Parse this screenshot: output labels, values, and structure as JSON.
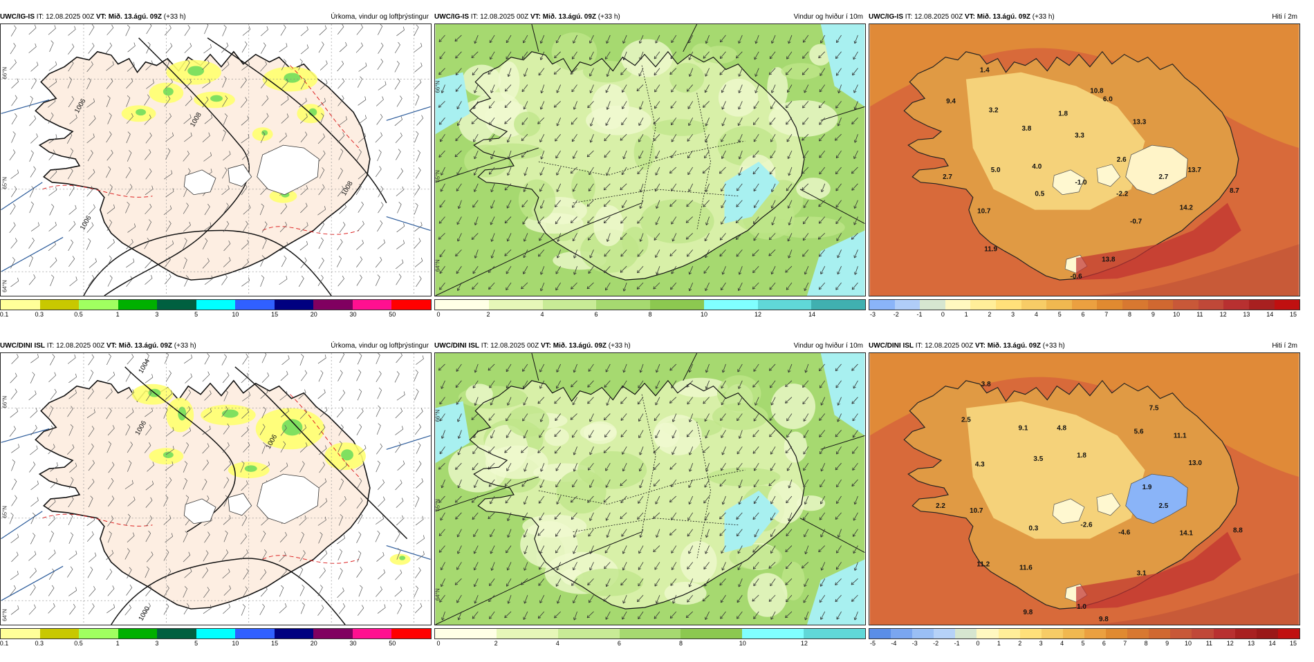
{
  "panels": [
    {
      "model": "UWC/IG-IS",
      "it_label": "IT:",
      "it_value": "12.08.2025 00Z",
      "vt_label": "VT:",
      "vt_value": "Mið. 13.ágú. 09Z",
      "lead": "(+33 h)",
      "title": "Úrkoma, vindur og loftþrýstingur",
      "kind": "precip",
      "legend_colors": [
        "#ffff99",
        "#c8c800",
        "#a0ff60",
        "#00b000",
        "#006040",
        "#00ffff",
        "#3060ff",
        "#000080",
        "#800060",
        "#ff1090",
        "#ff0000"
      ],
      "legend_ticks": [
        "0.1",
        "0.3",
        "0.5",
        "1",
        "3",
        "5",
        "10",
        "15",
        "20",
        "30",
        "50"
      ],
      "isobar_labels": [
        "1006",
        "1006",
        "1008",
        "1008"
      ],
      "lat_labels": [
        "66°N",
        "65°N",
        "64°N"
      ],
      "values": []
    },
    {
      "model": "UWC/IG-IS",
      "it_label": "IT:",
      "it_value": "12.08.2025 00Z",
      "vt_label": "VT:",
      "vt_value": "Mið. 13.ágú. 09Z",
      "lead": "(+33 h)",
      "title": "Vindur og hviður í 10m",
      "kind": "wind",
      "legend_colors": [
        "#ffffe6",
        "#e6f7b8",
        "#c8eb96",
        "#a6d970",
        "#8cc850",
        "#80ffff",
        "#60d8d8",
        "#40b0b0"
      ],
      "legend_ticks": [
        "0",
        "2",
        "4",
        "6",
        "8",
        "10",
        "12",
        "14"
      ],
      "isobar_labels": [],
      "lat_labels": [
        "66°N",
        "65°N",
        "64°N"
      ],
      "values": []
    },
    {
      "model": "UWC/IG-IS",
      "it_label": "IT:",
      "it_value": "12.08.2025 00Z",
      "vt_label": "VT:",
      "vt_value": "Mið. 13.ágú. 09Z",
      "lead": "(+33 h)",
      "title": "Hiti í 2m",
      "kind": "temp",
      "legend_colors": [
        "#8ab4f8",
        "#b0cdf8",
        "#d6e6d0",
        "#fff8c0",
        "#ffee99",
        "#ffe07a",
        "#f7cc66",
        "#f0b850",
        "#eba040",
        "#e08a30",
        "#d87830",
        "#d06830",
        "#c85838",
        "#c04838",
        "#b83030",
        "#a82020",
        "#c01010"
      ],
      "legend_ticks": [
        "-3",
        "-2",
        "-1",
        "0",
        "1",
        "2",
        "3",
        "4",
        "5",
        "6",
        "7",
        "8",
        "9",
        "10",
        "11",
        "12",
        "13",
        "14",
        "15"
      ],
      "isobar_labels": [],
      "lat_labels": [],
      "values": [
        {
          "t": "1.4"
        },
        {
          "t": "9.4"
        },
        {
          "t": "3.2"
        },
        {
          "t": "3.8"
        },
        {
          "t": "1.8"
        },
        {
          "t": "10.8"
        },
        {
          "t": "6.0"
        },
        {
          "t": "13.3"
        },
        {
          "t": "3.3"
        },
        {
          "t": "2.6"
        },
        {
          "t": "4.0"
        },
        {
          "t": "5.0"
        },
        {
          "t": "2.7"
        },
        {
          "t": "0.5"
        },
        {
          "t": "-1.0"
        },
        {
          "t": "-2.2"
        },
        {
          "t": "2.7"
        },
        {
          "t": "13.7"
        },
        {
          "t": "8.7"
        },
        {
          "t": "14.2"
        },
        {
          "t": "10.7"
        },
        {
          "t": "-0.7"
        },
        {
          "t": "11.9"
        },
        {
          "t": "13.8"
        },
        {
          "t": "-0.6"
        }
      ]
    },
    {
      "model": "UWC/DINI ISL",
      "it_label": "IT:",
      "it_value": "12.08.2025 00Z",
      "vt_label": "VT:",
      "vt_value": "Mið. 13.ágú. 09Z",
      "lead": "(+33 h)",
      "title": "Úrkoma, vindur og loftþrýstingur",
      "kind": "precip",
      "legend_colors": [
        "#ffff99",
        "#c8c800",
        "#a0ff60",
        "#00b000",
        "#006040",
        "#00ffff",
        "#3060ff",
        "#000080",
        "#800060",
        "#ff1090",
        "#ff0000"
      ],
      "legend_ticks": [
        "0.1",
        "0.3",
        "0.5",
        "1",
        "3",
        "5",
        "10",
        "15",
        "20",
        "30",
        "50"
      ],
      "isobar_labels": [
        "1004",
        "1006",
        "1006",
        "1000"
      ],
      "lat_labels": [
        "66°N",
        "65°N",
        "64°N"
      ],
      "values": []
    },
    {
      "model": "UWC/DINI ISL",
      "it_label": "IT:",
      "it_value": "12.08.2025 00Z",
      "vt_label": "VT:",
      "vt_value": "Mið. 13.ágú. 09Z",
      "lead": "(+33 h)",
      "title": "Vindur og hviður í 10m",
      "kind": "wind",
      "legend_colors": [
        "#ffffe6",
        "#e6f7b8",
        "#c8eb96",
        "#a6d970",
        "#8cc850",
        "#80ffff",
        "#60d8d8"
      ],
      "legend_ticks": [
        "0",
        "2",
        "4",
        "6",
        "8",
        "10",
        "12"
      ],
      "isobar_labels": [],
      "lat_labels": [
        "66°N",
        "65°N",
        "64°N"
      ],
      "values": []
    },
    {
      "model": "UWC/DINI ISL",
      "it_label": "IT:",
      "it_value": "12.08.2025 00Z",
      "vt_label": "VT:",
      "vt_value": "Mið. 13.ágú. 09Z",
      "lead": "(+33 h)",
      "title": "Hiti í 2m",
      "kind": "temp",
      "legend_colors": [
        "#5a8ee8",
        "#7aa6f0",
        "#9abff5",
        "#b6d2f8",
        "#d6e6d0",
        "#fff8c0",
        "#ffee99",
        "#ffe07a",
        "#f7cc66",
        "#f0b850",
        "#eba040",
        "#e08a30",
        "#d87830",
        "#d06830",
        "#c85838",
        "#c04838",
        "#b83030",
        "#a82020",
        "#9a1818",
        "#c01010"
      ],
      "legend_ticks": [
        "-5",
        "-4",
        "-3",
        "-2",
        "-1",
        "0",
        "1",
        "2",
        "3",
        "4",
        "5",
        "6",
        "7",
        "8",
        "9",
        "10",
        "11",
        "12",
        "13",
        "14",
        "15"
      ],
      "isobar_labels": [],
      "lat_labels": [],
      "values": [
        {
          "t": "3.8"
        },
        {
          "t": "2.5"
        },
        {
          "t": "9.1"
        },
        {
          "t": "4.8"
        },
        {
          "t": "7.5"
        },
        {
          "t": "5.6"
        },
        {
          "t": "11.1"
        },
        {
          "t": "13.0"
        },
        {
          "t": "1.8"
        },
        {
          "t": "3.5"
        },
        {
          "t": "4.3"
        },
        {
          "t": "1.9"
        },
        {
          "t": "2.5"
        },
        {
          "t": "2.2"
        },
        {
          "t": "10.7"
        },
        {
          "t": "0.3"
        },
        {
          "t": "-2.6"
        },
        {
          "t": "-4.6"
        },
        {
          "t": "14.1"
        },
        {
          "t": "8.8"
        },
        {
          "t": "11.2"
        },
        {
          "t": "11.6"
        },
        {
          "t": "3.1"
        },
        {
          "t": "9.8"
        },
        {
          "t": "1.0"
        },
        {
          "t": "9.8"
        }
      ]
    }
  ]
}
